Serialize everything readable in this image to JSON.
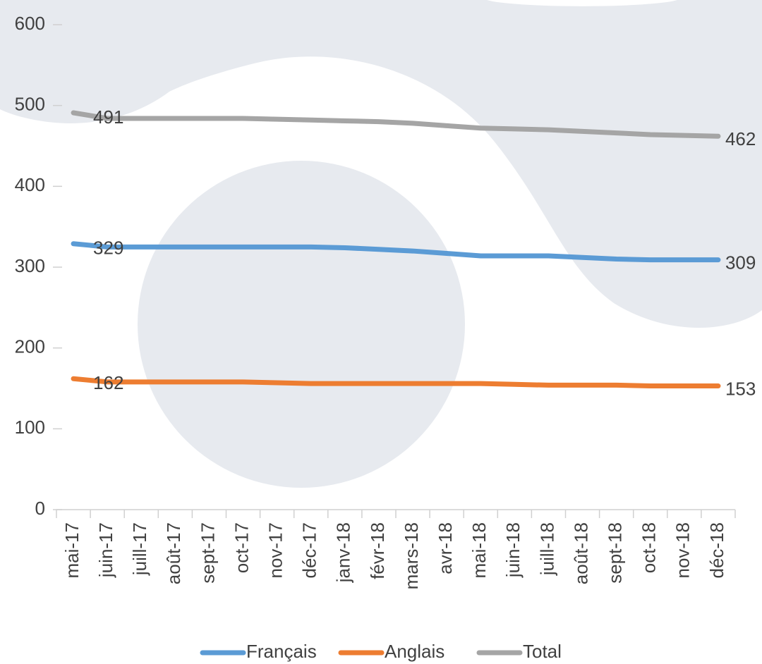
{
  "chart_data": {
    "type": "line",
    "categories": [
      "mai-17",
      "juin-17",
      "juill-17",
      "août-17",
      "sept-17",
      "oct-17",
      "nov-17",
      "déc-17",
      "janv-18",
      "févr-18",
      "mars-18",
      "avr-18",
      "mai-18",
      "juin-18",
      "juill-18",
      "août-18",
      "sept-18",
      "oct-18",
      "nov-18",
      "déc-18"
    ],
    "series": [
      {
        "name": "Français",
        "color": "#5b9bd5",
        "values": [
          329,
          325,
          325,
          325,
          325,
          325,
          325,
          325,
          324,
          322,
          320,
          317,
          314,
          314,
          314,
          312,
          310,
          309,
          309,
          309
        ]
      },
      {
        "name": "Anglais",
        "color": "#ed7d31",
        "values": [
          162,
          158,
          158,
          158,
          158,
          158,
          157,
          156,
          156,
          156,
          156,
          156,
          156,
          155,
          154,
          154,
          154,
          153,
          153,
          153
        ]
      },
      {
        "name": "Total",
        "color": "#a5a5a5",
        "values": [
          491,
          484,
          484,
          484,
          484,
          484,
          483,
          482,
          481,
          480,
          478,
          475,
          472,
          471,
          470,
          468,
          466,
          464,
          463,
          462
        ]
      }
    ],
    "ylim": [
      0,
      600
    ],
    "yticks": [
      0,
      100,
      200,
      300,
      400,
      500,
      600
    ],
    "legend": "bottom"
  }
}
